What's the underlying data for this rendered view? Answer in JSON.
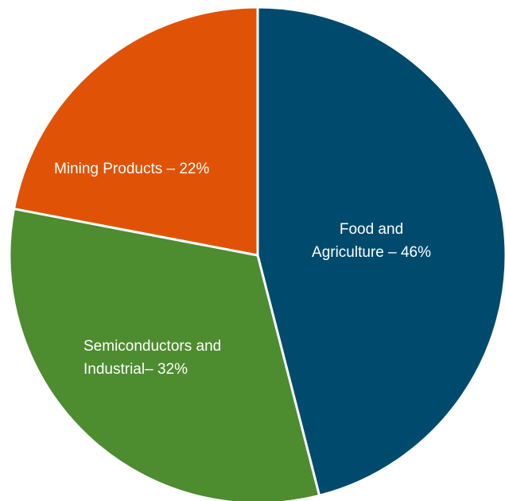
{
  "chart_data": {
    "type": "pie",
    "slices": [
      {
        "label_lines": [
          "Food and",
          "Agriculture – 46%"
        ],
        "value": 46,
        "color": "#004b6d"
      },
      {
        "label_lines": [
          "Semiconductors and",
          "Industrial– 32%"
        ],
        "value": 32,
        "color": "#4d8c2f"
      },
      {
        "label_lines": [
          "Mining Products – 22%"
        ],
        "value": 22,
        "color": "#e05306"
      }
    ],
    "start": "12 o'clock",
    "direction": "clockwise",
    "legend": "none"
  }
}
